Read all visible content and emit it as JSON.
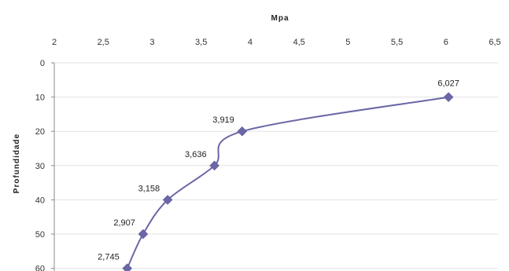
{
  "chart_data": {
    "type": "line",
    "title": "",
    "xlabel": "Mpa",
    "ylabel": "Profundidade",
    "x_axis_position": "top",
    "y_axis_inverted": true,
    "xlim": [
      2,
      6.5
    ],
    "ylim": [
      0,
      60
    ],
    "x_ticks": [
      2,
      2.5,
      3,
      3.5,
      4,
      4.5,
      5,
      5.5,
      6,
      6.5
    ],
    "x_tick_labels": [
      "2",
      "2,5",
      "3",
      "3,5",
      "4",
      "4,5",
      "5",
      "5,5",
      "6",
      "6,5"
    ],
    "y_ticks": [
      0,
      10,
      20,
      30,
      40,
      50,
      60
    ],
    "y_tick_labels": [
      "0",
      "10",
      "20",
      "30",
      "40",
      "50",
      "60"
    ],
    "grid": "horizontal",
    "series": [
      {
        "points": [
          {
            "x": 6.027,
            "y": 10,
            "label": "6,027"
          },
          {
            "x": 3.919,
            "y": 20,
            "label": "3,919"
          },
          {
            "x": 3.636,
            "y": 30,
            "label": "3,636"
          },
          {
            "x": 3.158,
            "y": 40,
            "label": "3,158"
          },
          {
            "x": 2.907,
            "y": 50,
            "label": "2,907"
          },
          {
            "x": 2.745,
            "y": 60,
            "label": "2,745"
          }
        ],
        "color": "#6b67a6",
        "marker": "diamond",
        "smooth": true
      }
    ],
    "colors": {
      "line": "#6b67a6",
      "marker": "#6b67a6",
      "grid": "#e3e3e3",
      "axis": "#8a8a8a"
    }
  }
}
